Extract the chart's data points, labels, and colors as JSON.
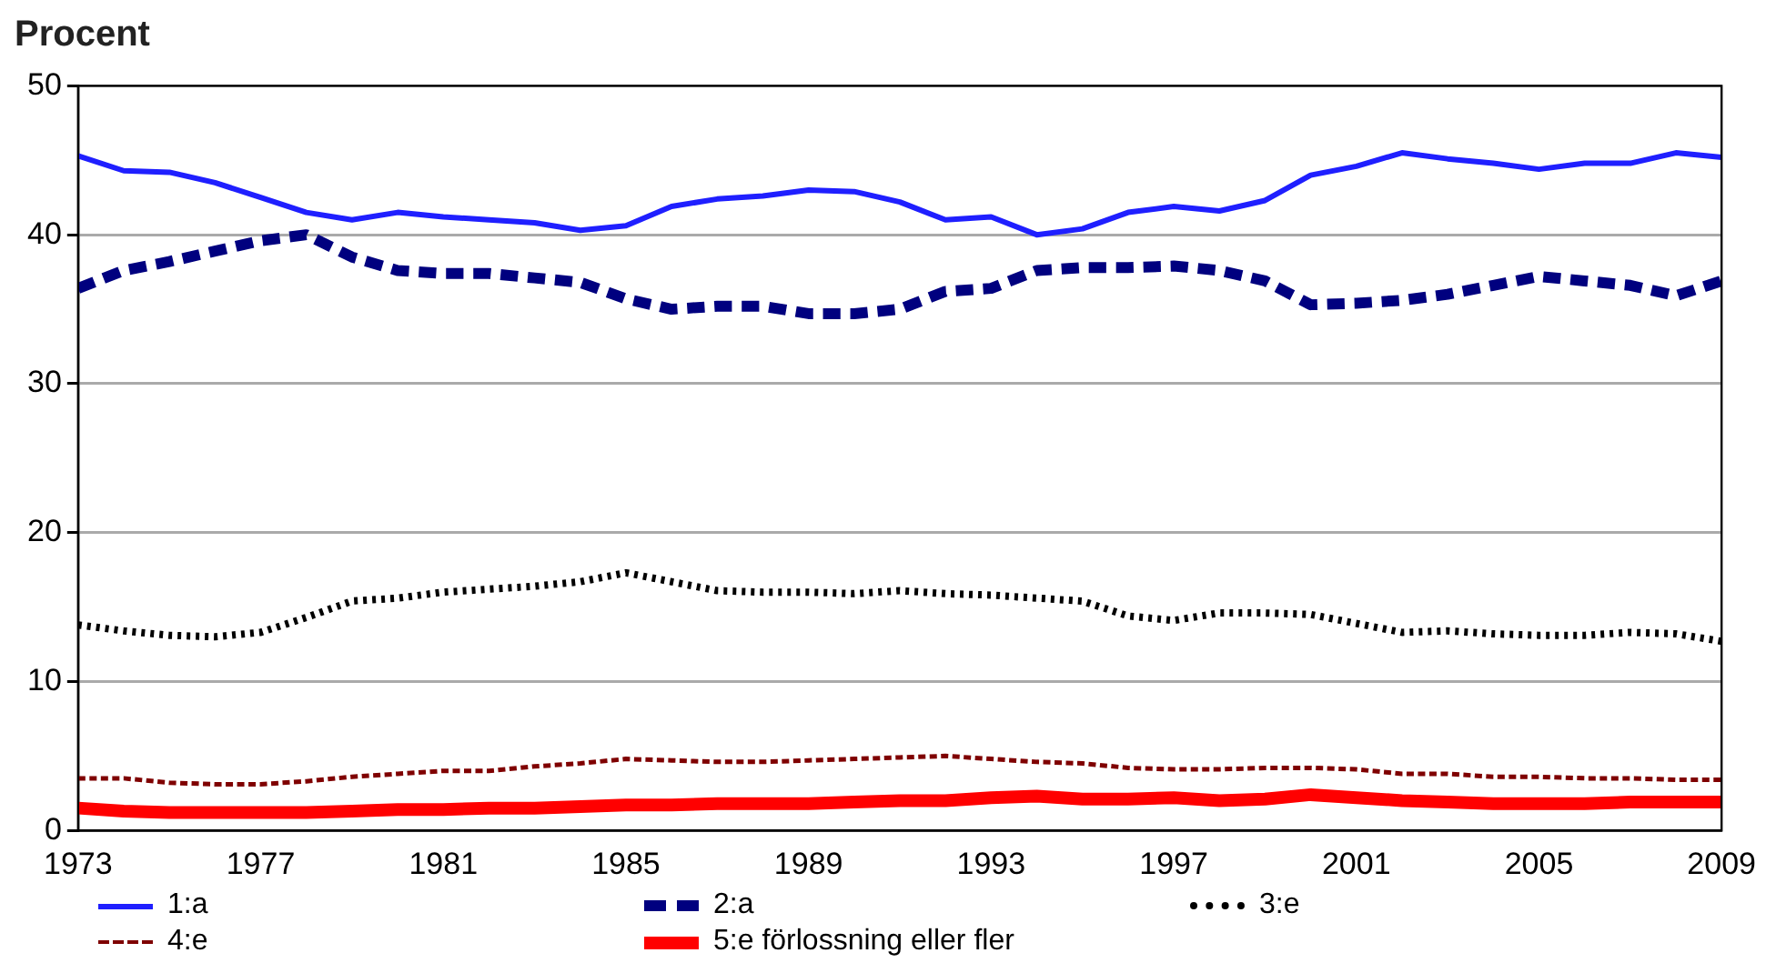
{
  "chart_data": {
    "type": "line",
    "ylabel": "Procent",
    "xlim": [
      1973,
      2009
    ],
    "xticks": [
      1973,
      1977,
      1981,
      1985,
      1989,
      1993,
      1997,
      2001,
      2005,
      2009
    ],
    "ylim": [
      0,
      50
    ],
    "yticks": [
      0,
      10,
      20,
      30,
      40,
      50
    ],
    "grid": "y",
    "legend": "bottom",
    "marker": "none",
    "x": [
      1973,
      1974,
      1975,
      1976,
      1977,
      1978,
      1979,
      1980,
      1981,
      1982,
      1983,
      1984,
      1985,
      1986,
      1987,
      1988,
      1989,
      1990,
      1991,
      1992,
      1993,
      1994,
      1995,
      1996,
      1997,
      1998,
      1999,
      2000,
      2001,
      2002,
      2003,
      2004,
      2005,
      2006,
      2007,
      2008,
      2009
    ],
    "series": [
      {
        "name": "1:a",
        "color": "#1f1fff",
        "line_style": "solid",
        "values": [
          45.3,
          44.3,
          44.2,
          43.5,
          42.5,
          41.5,
          41.0,
          41.5,
          41.2,
          41.0,
          40.8,
          40.3,
          40.6,
          41.9,
          42.4,
          42.6,
          43.0,
          42.9,
          42.2,
          41.0,
          41.2,
          40.0,
          40.4,
          41.5,
          41.9,
          41.6,
          42.3,
          44.0,
          44.6,
          45.5,
          45.1,
          44.8,
          44.4,
          44.8,
          44.8,
          45.5,
          45.2
        ]
      },
      {
        "name": "2:a",
        "color": "#00007f",
        "line_style": "dashed",
        "values": [
          36.4,
          37.6,
          38.2,
          38.9,
          39.6,
          40.0,
          38.5,
          37.6,
          37.4,
          37.4,
          37.1,
          36.8,
          35.7,
          35.0,
          35.2,
          35.2,
          34.7,
          34.7,
          35.0,
          36.2,
          36.4,
          37.6,
          37.8,
          37.8,
          37.9,
          37.6,
          36.9,
          35.3,
          35.4,
          35.6,
          36.0,
          36.6,
          37.2,
          36.9,
          36.6,
          35.9,
          36.9
        ]
      },
      {
        "name": "3:e",
        "color": "#000000",
        "line_style": "dotted",
        "values": [
          13.8,
          13.4,
          13.1,
          13.0,
          13.3,
          14.3,
          15.4,
          15.6,
          16.0,
          16.2,
          16.4,
          16.7,
          17.3,
          16.7,
          16.1,
          16.0,
          16.0,
          15.9,
          16.1,
          15.9,
          15.8,
          15.6,
          15.4,
          14.4,
          14.1,
          14.6,
          14.6,
          14.5,
          13.9,
          13.3,
          13.4,
          13.2,
          13.1,
          13.1,
          13.3,
          13.2,
          12.7
        ]
      },
      {
        "name": "4:e",
        "color": "#7f0000",
        "line_style": "dashed",
        "values": [
          3.5,
          3.5,
          3.2,
          3.1,
          3.1,
          3.3,
          3.6,
          3.8,
          4.0,
          4.0,
          4.3,
          4.5,
          4.8,
          4.7,
          4.6,
          4.6,
          4.7,
          4.8,
          4.9,
          5.0,
          4.8,
          4.6,
          4.5,
          4.2,
          4.1,
          4.1,
          4.2,
          4.2,
          4.1,
          3.8,
          3.8,
          3.6,
          3.6,
          3.5,
          3.5,
          3.4,
          3.4
        ]
      },
      {
        "name": "5:e förlossning eller fler",
        "color": "#ff0000",
        "line_style": "solid",
        "values": [
          1.5,
          1.3,
          1.2,
          1.2,
          1.2,
          1.2,
          1.3,
          1.4,
          1.4,
          1.5,
          1.5,
          1.6,
          1.7,
          1.7,
          1.8,
          1.8,
          1.8,
          1.9,
          2.0,
          2.0,
          2.2,
          2.3,
          2.1,
          2.1,
          2.2,
          2.0,
          2.1,
          2.4,
          2.2,
          2.0,
          1.9,
          1.8,
          1.8,
          1.8,
          1.9,
          1.9,
          1.9
        ]
      }
    ]
  }
}
